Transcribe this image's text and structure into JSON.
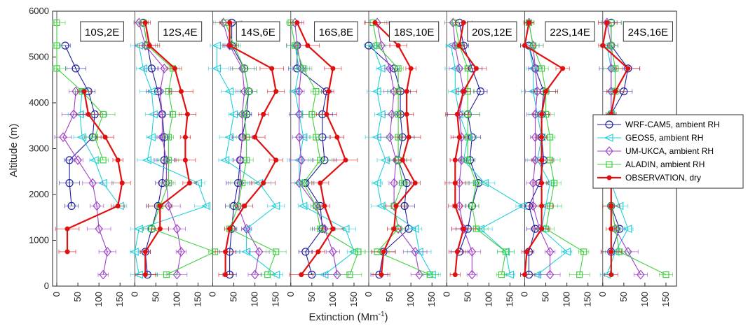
{
  "chart_data": {
    "type": "line",
    "ylabel": "Altitude (m)",
    "xlabel": "Extinction (Mm",
    "xlabel_sup": "-1",
    "xlabel_tail": ")",
    "ylim": [
      0,
      6000
    ],
    "yticks": [
      0,
      1000,
      2000,
      3000,
      4000,
      5000,
      6000
    ],
    "xticks": [
      0,
      50,
      100,
      150
    ],
    "panel_xlim": [
      -10,
      175
    ],
    "grid": false,
    "legend_position": "right",
    "panels": [
      "10S,2E",
      "12S,4E",
      "14S,6E",
      "16S,8E",
      "18S,10E",
      "20S,12E",
      "22S,14E",
      "24S,16E"
    ],
    "altitudes": [
      250,
      750,
      1250,
      1750,
      2250,
      2750,
      3250,
      3750,
      4250,
      4750,
      5250,
      5750
    ],
    "series": [
      {
        "name": "WRF-CAM5, ambient RH",
        "color": "#1f1fa0",
        "marker": "circle",
        "panels": [
          [
            null,
            null,
            null,
            35,
            30,
            30,
            85,
            90,
            75,
            45,
            20,
            null
          ],
          [
            30,
            25,
            40,
            55,
            65,
            70,
            70,
            65,
            55,
            40,
            30,
            20
          ],
          [
            40,
            40,
            45,
            50,
            60,
            65,
            70,
            80,
            85,
            75,
            45,
            45
          ],
          [
            50,
            35,
            75,
            70,
            35,
            80,
            75,
            75,
            85,
            15,
            15,
            null
          ],
          [
            25,
            35,
            95,
            85,
            90,
            70,
            80,
            75,
            75,
            60,
            0,
            null
          ],
          [
            null,
            30,
            50,
            60,
            75,
            55,
            60,
            50,
            80,
            60,
            40,
            30
          ],
          [
            10,
            10,
            25,
            10,
            35,
            45,
            40,
            40,
            45,
            25,
            10,
            null
          ],
          [
            null,
            20,
            40,
            20,
            20,
            20,
            20,
            20,
            50,
            60,
            20,
            20
          ]
        ]
      },
      {
        "name": "GEOS5, ambient RH",
        "color": "#22d0d8",
        "marker": "triangle-left",
        "panels": [
          [
            null,
            null,
            null,
            150,
            110,
            90,
            60,
            55,
            60,
            null,
            null,
            null
          ],
          [
            10,
            0,
            10,
            170,
            150,
            30,
            40,
            45,
            40,
            20,
            10,
            null
          ],
          [
            150,
            80,
            80,
            150,
            110,
            30,
            40,
            50,
            40,
            10,
            10,
            null
          ],
          [
            80,
            150,
            130,
            30,
            20,
            20,
            30,
            20,
            10,
            20,
            10,
            null
          ],
          [
            150,
            120,
            110,
            30,
            20,
            40,
            20,
            30,
            20,
            30,
            10,
            null
          ],
          [
            150,
            140,
            80,
            180,
            90,
            40,
            50,
            30,
            20,
            20,
            10,
            null
          ],
          [
            30,
            100,
            40,
            50,
            60,
            30,
            40,
            30,
            20,
            20,
            10,
            null
          ],
          [
            10,
            30,
            60,
            40,
            20,
            20,
            20,
            20,
            20,
            20,
            10,
            null
          ]
        ]
      },
      {
        "name": "UM-UKCA, ambient RH",
        "color": "#a040c8",
        "marker": "diamond",
        "panels": [
          [
            110,
            120,
            100,
            95,
            85,
            50,
            15,
            40,
            45,
            null,
            null,
            null
          ],
          [
            100,
            110,
            100,
            80,
            75,
            75,
            65,
            65,
            60,
            70,
            25,
            10
          ],
          [
            100,
            110,
            80,
            60,
            65,
            65,
            70,
            70,
            75,
            70,
            40,
            25
          ],
          [
            110,
            100,
            80,
            60,
            20,
            25,
            20,
            20,
            20,
            25,
            15,
            10
          ],
          [
            120,
            110,
            70,
            60,
            60,
            65,
            50,
            55,
            60,
            50,
            30,
            20
          ],
          [
            60,
            60,
            40,
            30,
            30,
            35,
            35,
            30,
            40,
            30,
            20,
            15
          ],
          [
            60,
            60,
            35,
            20,
            20,
            25,
            25,
            25,
            30,
            25,
            20,
            10
          ],
          [
            90,
            60,
            30,
            20,
            20,
            20,
            20,
            20,
            20,
            20,
            20,
            10
          ]
        ]
      },
      {
        "name": "ALADIN, ambient RH",
        "color": "#40d040",
        "marker": "square",
        "panels": [
          [
            null,
            null,
            null,
            null,
            null,
            110,
            90,
            110,
            60,
            0,
            0,
            0
          ],
          [
            75,
            190,
            40,
            60,
            80,
            80,
            80,
            90,
            80,
            90,
            30,
            20
          ],
          [
            130,
            150,
            40,
            60,
            70,
            80,
            80,
            75,
            85,
            75,
            50,
            30
          ],
          [
            140,
            160,
            70,
            60,
            30,
            70,
            60,
            50,
            60,
            30,
            10,
            0
          ],
          [
            145,
            20,
            70,
            60,
            80,
            70,
            70,
            70,
            70,
            70,
            20,
            10
          ],
          [
            130,
            140,
            70,
            60,
            70,
            50,
            50,
            50,
            50,
            50,
            30,
            20
          ],
          [
            130,
            140,
            50,
            60,
            70,
            60,
            60,
            50,
            50,
            40,
            20,
            10
          ],
          [
            150,
            40,
            30,
            20,
            20,
            20,
            20,
            20,
            30,
            30,
            20,
            20
          ]
        ]
      },
      {
        "name": "OBSERVATION, dry",
        "color": "#e01010",
        "marker": "dot",
        "panels": [
          [
            null,
            25,
            25,
            145,
            155,
            145,
            115,
            75,
            65,
            null,
            null,
            null
          ],
          [
            25,
            25,
            60,
            60,
            130,
            120,
            120,
            125,
            110,
            95,
            35,
            25
          ],
          [
            30,
            30,
            40,
            75,
            120,
            150,
            100,
            120,
            150,
            140,
            40,
            40
          ],
          [
            25,
            65,
            100,
            80,
            70,
            130,
            110,
            85,
            90,
            100,
            40,
            15
          ],
          [
            30,
            35,
            60,
            65,
            110,
            80,
            95,
            90,
            90,
            100,
            70,
            15
          ],
          [
            20,
            25,
            40,
            20,
            20,
            20,
            30,
            25,
            40,
            70,
            30,
            40
          ],
          [
            0,
            5,
            40,
            40,
            40,
            40,
            40,
            40,
            50,
            90,
            0,
            10
          ],
          [
            20,
            20,
            20,
            20,
            20,
            20,
            20,
            20,
            30,
            60,
            0,
            10
          ]
        ]
      }
    ]
  }
}
